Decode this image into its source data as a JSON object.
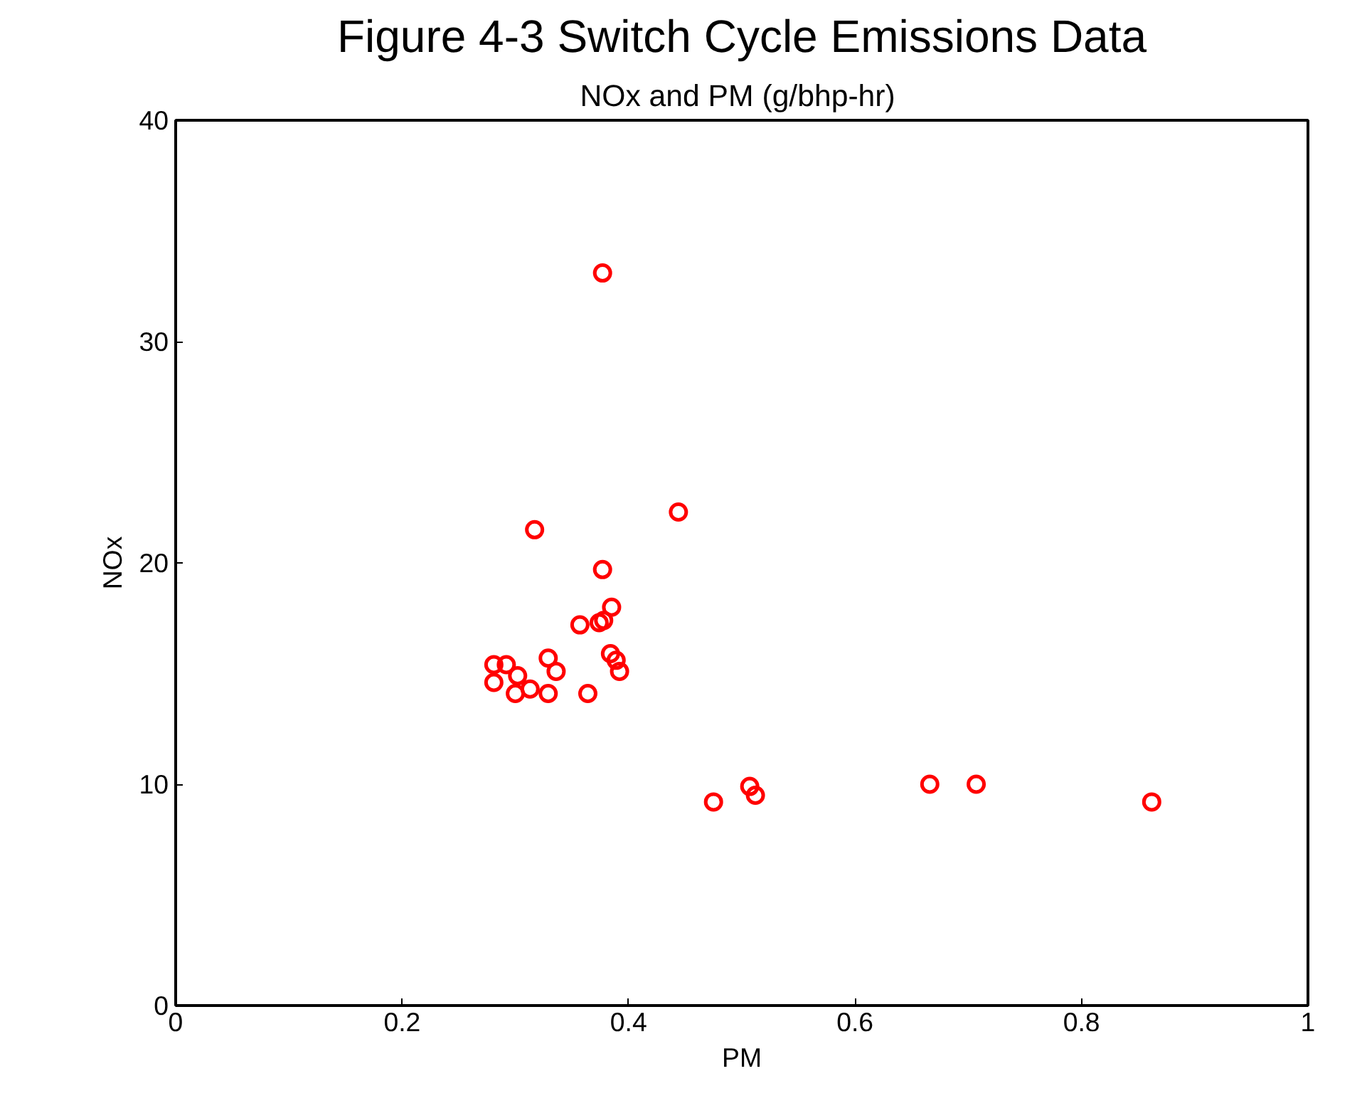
{
  "chart_data": {
    "type": "scatter",
    "title": "Figure 4-3 Switch Cycle Emissions Data",
    "subtitle": "NOx and PM  (g/bhp-hr)",
    "xlabel": "PM",
    "ylabel": "NOx",
    "x": [
      0.377,
      0.444,
      0.317,
      0.377,
      0.385,
      0.378,
      0.374,
      0.357,
      0.384,
      0.389,
      0.392,
      0.329,
      0.336,
      0.281,
      0.292,
      0.302,
      0.281,
      0.313,
      0.3,
      0.329,
      0.364,
      0.475,
      0.507,
      0.512,
      0.666,
      0.707,
      0.862
    ],
    "series": [
      {
        "color": "#ff0000",
        "values": [
          33.1,
          22.3,
          21.5,
          19.7,
          18.0,
          17.4,
          17.3,
          17.2,
          15.9,
          15.6,
          15.1,
          15.7,
          15.1,
          15.4,
          15.4,
          14.9,
          14.6,
          14.3,
          14.1,
          14.1,
          14.1,
          9.2,
          9.9,
          9.5,
          10.0,
          10.0,
          9.2
        ]
      }
    ],
    "marker": "circle",
    "grid": false,
    "xlim": [
      0,
      1
    ],
    "xticks": [
      0,
      0.2,
      0.4,
      0.6,
      0.8,
      1
    ],
    "ylim": [
      0,
      40
    ],
    "yticks": [
      0,
      10,
      20,
      30,
      40
    ]
  }
}
